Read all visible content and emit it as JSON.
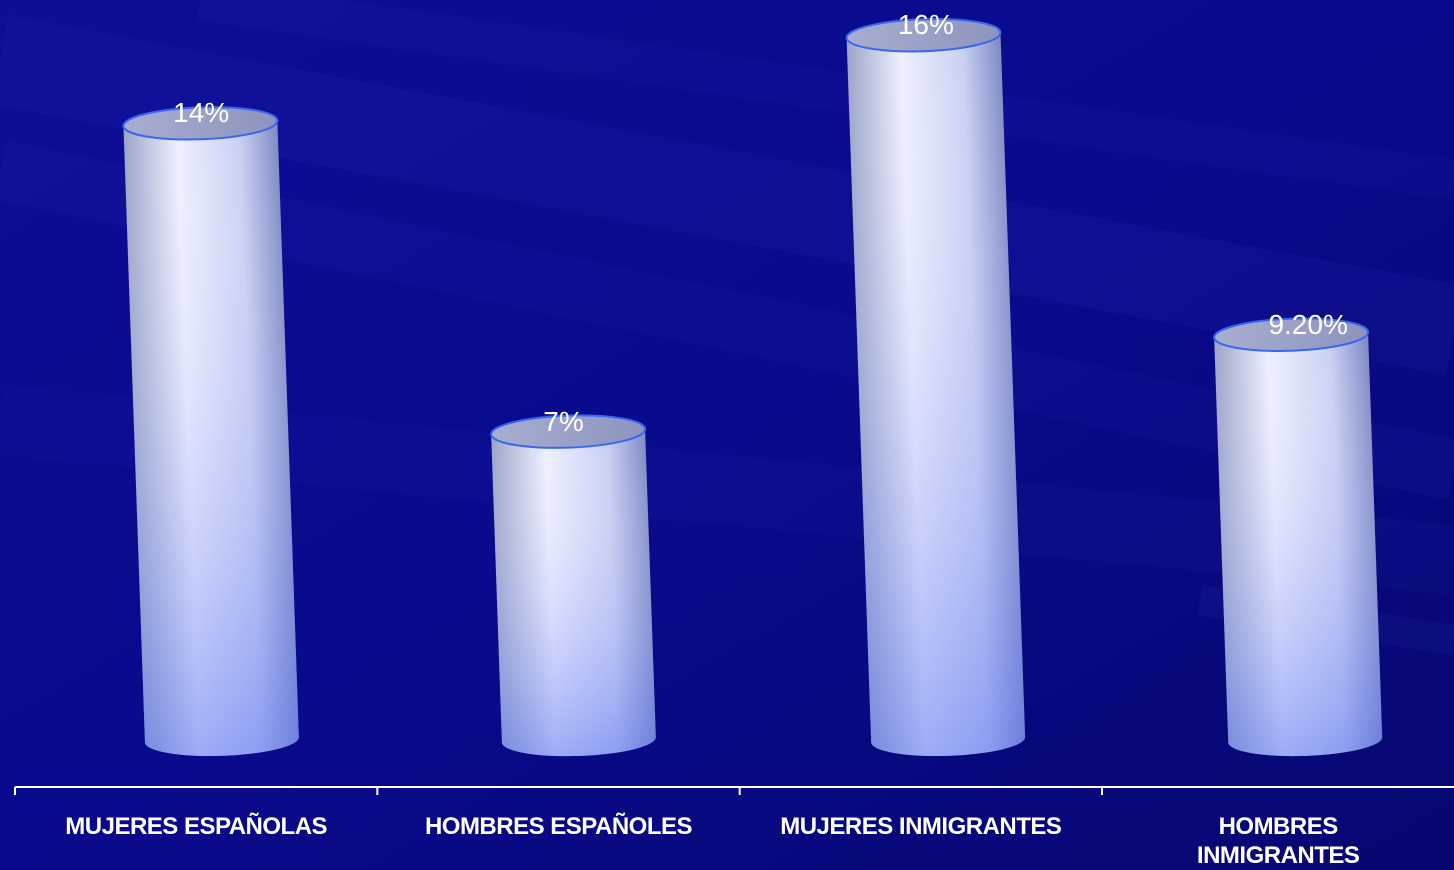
{
  "chart_data": {
    "type": "bar",
    "style": "3d-cylinder",
    "categories": [
      "MUJERES ESPAÑOLAS",
      "HOMBRES ESPAÑOLES",
      "MUJERES INMIGRANTES",
      "HOMBRES INMIGRANTES"
    ],
    "values": [
      14,
      7,
      16,
      9.2
    ],
    "value_labels": [
      "14%",
      "7%",
      "16%",
      "9.20%"
    ],
    "ylim": [
      0,
      16
    ],
    "grid": false,
    "legend": "none"
  },
  "colors": {
    "background": "#0a0a8a",
    "cylinder_light": "#eef0fe",
    "cylinder_dark": "#7f93f4",
    "cylinder_outline": "#3b66f2",
    "axis": "#ffffff"
  }
}
